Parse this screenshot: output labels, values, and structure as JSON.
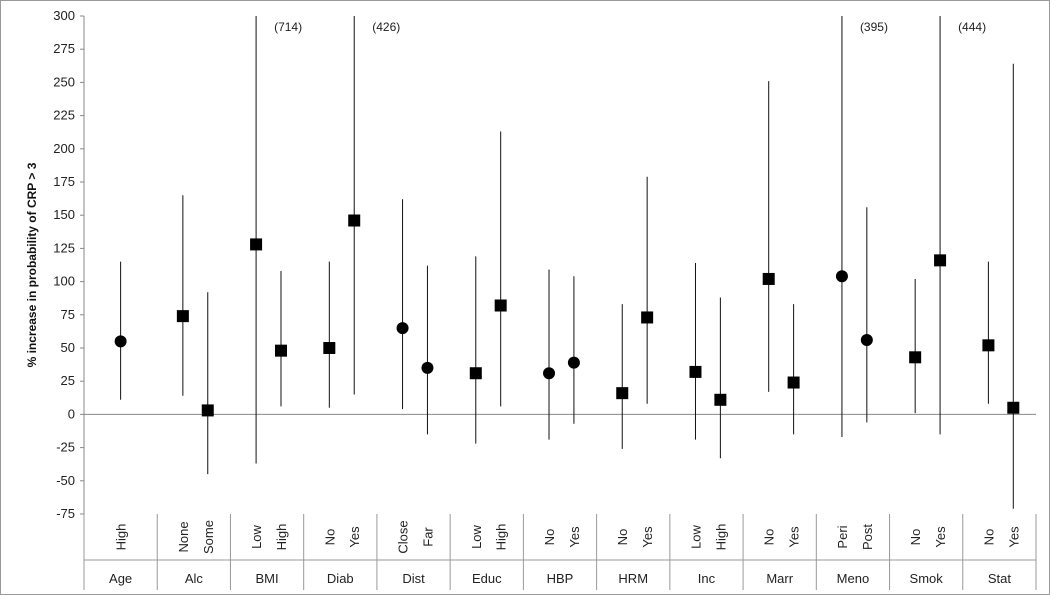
{
  "chart_data": {
    "type": "scatter",
    "ylabel": "% increase in probability of CRP > 3",
    "ylim": [
      -75,
      300
    ],
    "yticks": [
      -75,
      -50,
      -25,
      0,
      25,
      50,
      75,
      100,
      125,
      150,
      175,
      200,
      225,
      250,
      275,
      300
    ],
    "grid": false,
    "groups": [
      {
        "name": "Age",
        "items": [
          {
            "label": "High",
            "value": 55,
            "low": 11,
            "high": 115,
            "marker": "circle"
          }
        ]
      },
      {
        "name": "Alc",
        "items": [
          {
            "label": "None",
            "value": 74,
            "low": 14,
            "high": 165,
            "marker": "square"
          },
          {
            "label": "Some",
            "value": 3,
            "low": -45,
            "high": 92,
            "marker": "square"
          }
        ]
      },
      {
        "name": "BMI",
        "items": [
          {
            "label": "Low",
            "value": 128,
            "low": -37,
            "high": 300,
            "marker": "square",
            "annotation": "(714)"
          },
          {
            "label": "High",
            "value": 48,
            "low": 6,
            "high": 108,
            "marker": "square"
          }
        ]
      },
      {
        "name": "Diab",
        "items": [
          {
            "label": "No",
            "value": 50,
            "low": 5,
            "high": 115,
            "marker": "square"
          },
          {
            "label": "Yes",
            "value": 146,
            "low": 15,
            "high": 300,
            "marker": "square",
            "annotation": "(426)"
          }
        ]
      },
      {
        "name": "Dist",
        "items": [
          {
            "label": "Close",
            "value": 65,
            "low": 4,
            "high": 162,
            "marker": "circle"
          },
          {
            "label": "Far",
            "value": 35,
            "low": -15,
            "high": 112,
            "marker": "circle"
          }
        ]
      },
      {
        "name": "Educ",
        "items": [
          {
            "label": "Low",
            "value": 31,
            "low": -22,
            "high": 119,
            "marker": "square"
          },
          {
            "label": "High",
            "value": 82,
            "low": 6,
            "high": 213,
            "marker": "square"
          }
        ]
      },
      {
        "name": "HBP",
        "items": [
          {
            "label": "No",
            "value": 31,
            "low": -19,
            "high": 109,
            "marker": "circle"
          },
          {
            "label": "Yes",
            "value": 39,
            "low": -7,
            "high": 104,
            "marker": "circle"
          }
        ]
      },
      {
        "name": "HRM",
        "items": [
          {
            "label": "No",
            "value": 16,
            "low": -26,
            "high": 83,
            "marker": "square"
          },
          {
            "label": "Yes",
            "value": 73,
            "low": 8,
            "high": 179,
            "marker": "square"
          }
        ]
      },
      {
        "name": "Inc",
        "items": [
          {
            "label": "Low",
            "value": 32,
            "low": -19,
            "high": 114,
            "marker": "square"
          },
          {
            "label": "High",
            "value": 11,
            "low": -33,
            "high": 88,
            "marker": "square"
          }
        ]
      },
      {
        "name": "Marr",
        "items": [
          {
            "label": "No",
            "value": 102,
            "low": 17,
            "high": 251,
            "marker": "square"
          },
          {
            "label": "Yes",
            "value": 24,
            "low": -15,
            "high": 83,
            "marker": "square"
          }
        ]
      },
      {
        "name": "Meno",
        "items": [
          {
            "label": "Peri",
            "value": 104,
            "low": -17,
            "high": 300,
            "marker": "circle",
            "annotation": "(395)"
          },
          {
            "label": "Post",
            "value": 56,
            "low": -6,
            "high": 156,
            "marker": "circle"
          }
        ]
      },
      {
        "name": "Smok",
        "items": [
          {
            "label": "No",
            "value": 43,
            "low": 1,
            "high": 102,
            "marker": "square"
          },
          {
            "label": "Yes",
            "value": 116,
            "low": -15,
            "high": 300,
            "marker": "square",
            "annotation": "(444)"
          }
        ]
      },
      {
        "name": "Stat",
        "items": [
          {
            "label": "No",
            "value": 52,
            "low": 8,
            "high": 115,
            "marker": "square"
          },
          {
            "label": "Yes",
            "value": 5,
            "low": -71,
            "high": 264,
            "marker": "square"
          }
        ]
      }
    ]
  }
}
